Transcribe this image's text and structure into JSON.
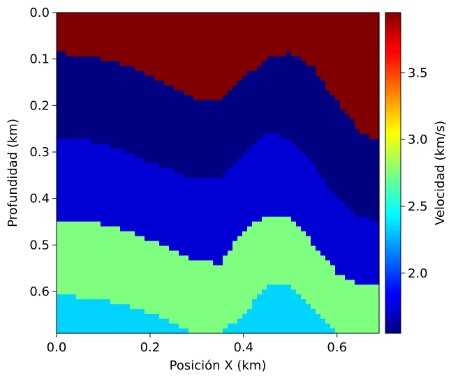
{
  "chart_data": {
    "type": "heatmap",
    "title": "",
    "xlabel": "Posición X (km)",
    "ylabel": "Profundidad (km)",
    "colorbar_label": "Velocidad (km/s)",
    "colormap": "jet",
    "xlim": [
      0.0,
      0.69
    ],
    "ylim": [
      0.69,
      0.0
    ],
    "x_ticks": [
      "0.0",
      "0.2",
      "0.4",
      "0.6"
    ],
    "y_ticks": [
      "0.0",
      "0.1",
      "0.2",
      "0.3",
      "0.4",
      "0.5",
      "0.6"
    ],
    "colorbar_range": [
      1.55,
      3.95
    ],
    "colorbar_ticks": [
      "2.0",
      "2.5",
      "3.0",
      "3.5"
    ],
    "layers": [
      {
        "velocity": 3.95
      },
      {
        "velocity": 1.55
      },
      {
        "velocity": 1.75
      },
      {
        "velocity": 2.75
      },
      {
        "velocity": 2.35
      }
    ],
    "interface_x": [
      0.0,
      0.05,
      0.1,
      0.15,
      0.2,
      0.25,
      0.3,
      0.35,
      0.4,
      0.45,
      0.5,
      0.55,
      0.6,
      0.65,
      0.69
    ],
    "interfaces": [
      [
        0.088,
        0.09,
        0.1,
        0.115,
        0.135,
        0.16,
        0.185,
        0.185,
        0.14,
        0.1,
        0.088,
        0.12,
        0.19,
        0.255,
        0.275
      ],
      [
        0.275,
        0.275,
        0.28,
        0.3,
        0.325,
        0.34,
        0.36,
        0.36,
        0.3,
        0.26,
        0.27,
        0.33,
        0.4,
        0.44,
        0.45
      ],
      [
        0.445,
        0.445,
        0.455,
        0.47,
        0.49,
        0.51,
        0.535,
        0.54,
        0.47,
        0.435,
        0.44,
        0.5,
        0.56,
        0.59,
        0.59
      ],
      [
        0.6,
        0.615,
        0.62,
        0.63,
        0.645,
        0.67,
        0.69,
        0.69,
        0.65,
        0.59,
        0.59,
        0.64,
        0.69,
        0.69,
        0.69
      ]
    ]
  }
}
